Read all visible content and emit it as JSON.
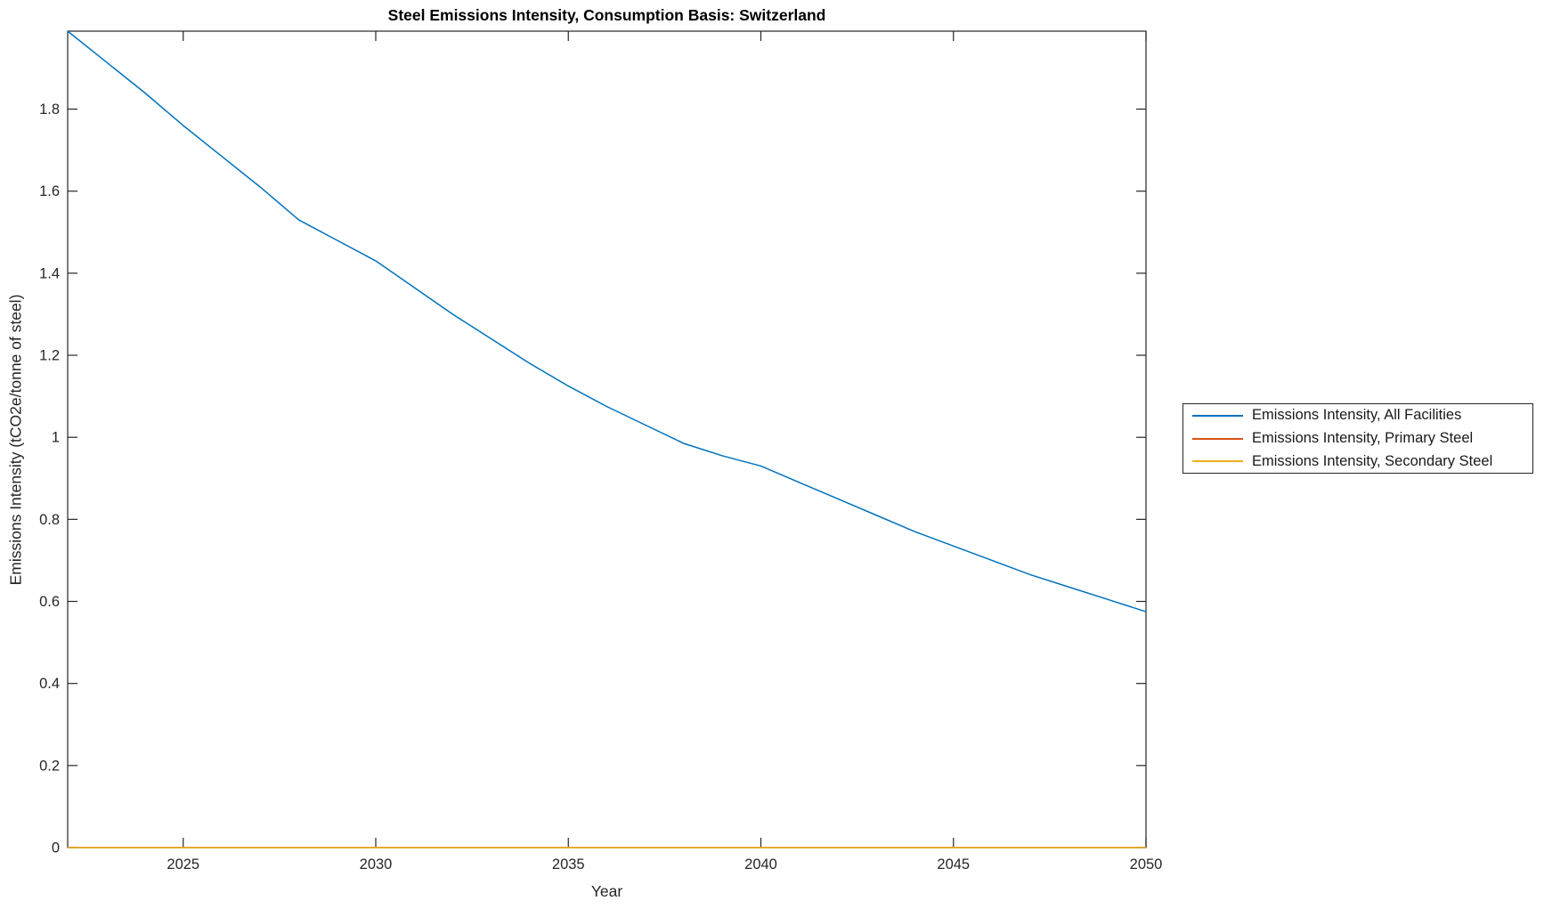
{
  "chart_data": {
    "type": "line",
    "title": "Steel Emissions Intensity, Consumption Basis: Switzerland",
    "xlabel": "Year",
    "ylabel": "Emissions Intensity (tCO2e/tonne of steel)",
    "xlim": [
      2022,
      2050
    ],
    "ylim": [
      0,
      1.99
    ],
    "xticks": [
      2025,
      2030,
      2035,
      2040,
      2045,
      2050
    ],
    "xtick_labels": [
      "2025",
      "2030",
      "2035",
      "2040",
      "2045",
      "2050"
    ],
    "yticks": [
      0,
      0.2,
      0.4,
      0.6,
      0.8,
      1,
      1.2,
      1.4,
      1.6,
      1.8
    ],
    "ytick_labels": [
      "0",
      "0.2",
      "0.4",
      "0.6",
      "0.8",
      "1",
      "1.2",
      "1.4",
      "1.6",
      "1.8"
    ],
    "grid": false,
    "axis_color": "#262626",
    "legend_position": "outside-right",
    "x": [
      2022,
      2023,
      2024,
      2025,
      2026,
      2027,
      2028,
      2029,
      2030,
      2031,
      2032,
      2033,
      2034,
      2035,
      2036,
      2037,
      2038,
      2039,
      2040,
      2041,
      2042,
      2043,
      2044,
      2045,
      2046,
      2047,
      2048,
      2049,
      2050
    ],
    "series": [
      {
        "name": "Emissions Intensity, All Facilities",
        "color": "#0072BD",
        "values": [
          1.99,
          1.915,
          1.84,
          1.76,
          1.685,
          1.61,
          1.53,
          1.48,
          1.43,
          1.365,
          1.3,
          1.24,
          1.18,
          1.125,
          1.075,
          1.03,
          0.985,
          0.955,
          0.93,
          0.89,
          0.85,
          0.81,
          0.77,
          0.735,
          0.7,
          0.665,
          0.635,
          0.605,
          0.575
        ]
      },
      {
        "name": "Emissions Intensity, Primary Steel",
        "color": "#D95319",
        "values": [
          0,
          0,
          0,
          0,
          0,
          0,
          0,
          0,
          0,
          0,
          0,
          0,
          0,
          0,
          0,
          0,
          0,
          0,
          0,
          0,
          0,
          0,
          0,
          0,
          0,
          0,
          0,
          0,
          0
        ]
      },
      {
        "name": "Emissions Intensity, Secondary Steel",
        "color": "#EDB120",
        "values": [
          0,
          0,
          0,
          0,
          0,
          0,
          0,
          0,
          0,
          0,
          0,
          0,
          0,
          0,
          0,
          0,
          0,
          0,
          0,
          0,
          0,
          0,
          0,
          0,
          0,
          0,
          0,
          0,
          0
        ]
      }
    ]
  }
}
